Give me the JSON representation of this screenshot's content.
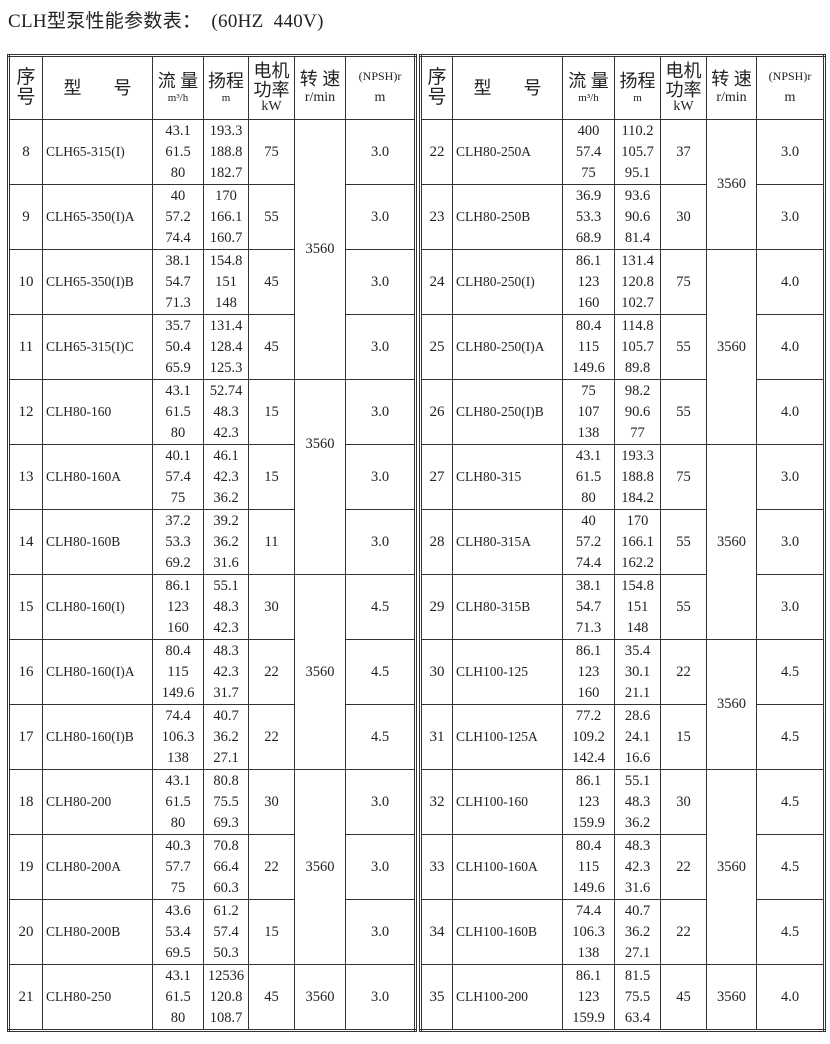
{
  "title": "CLH型泵性能参数表：  (60HZ  440V)",
  "headers": {
    "seq": [
      "序",
      "号"
    ],
    "model": [
      "型",
      "号"
    ],
    "flow": "流 量",
    "flow_unit": "m³/h",
    "head": "扬程",
    "head_unit": "m",
    "power": [
      "电机",
      "功率"
    ],
    "power_unit": "kW",
    "speed": "转 速",
    "speed_unit": "r/min",
    "npsh": "(NPSH)r",
    "npsh_unit": "m"
  },
  "tables": [
    {
      "rows": [
        {
          "no": "8",
          "model": "CLH65-315(I)",
          "flow": [
            "43.1",
            "61.5",
            "80"
          ],
          "head": [
            "193.3",
            "188.8",
            "182.7"
          ],
          "power": "75",
          "npsh": "3.0"
        },
        {
          "no": "9",
          "model": "CLH65-350(I)A",
          "flow": [
            "40",
            "57.2",
            "74.4"
          ],
          "head": [
            "170",
            "166.1",
            "160.7"
          ],
          "power": "55",
          "npsh": "3.0"
        },
        {
          "no": "10",
          "model": "CLH65-350(I)B",
          "flow": [
            "38.1",
            "54.7",
            "71.3"
          ],
          "head": [
            "154.8",
            "151",
            "148"
          ],
          "power": "45",
          "npsh": "3.0"
        },
        {
          "no": "11",
          "model": "CLH65-315(I)C",
          "flow": [
            "35.7",
            "50.4",
            "65.9"
          ],
          "head": [
            "131.4",
            "128.4",
            "125.3"
          ],
          "power": "45",
          "npsh": "3.0"
        },
        {
          "no": "12",
          "model": "CLH80-160",
          "flow": [
            "43.1",
            "61.5",
            "80"
          ],
          "head": [
            "52.74",
            "48.3",
            "42.3"
          ],
          "power": "15",
          "npsh": "3.0"
        },
        {
          "no": "13",
          "model": "CLH80-160A",
          "flow": [
            "40.1",
            "57.4",
            "75"
          ],
          "head": [
            "46.1",
            "42.3",
            "36.2"
          ],
          "power": "15",
          "npsh": "3.0"
        },
        {
          "no": "14",
          "model": "CLH80-160B",
          "flow": [
            "37.2",
            "53.3",
            "69.2"
          ],
          "head": [
            "39.2",
            "36.2",
            "31.6"
          ],
          "power": "11",
          "npsh": "3.0"
        },
        {
          "no": "15",
          "model": "CLH80-160(I)",
          "flow": [
            "86.1",
            "123",
            "160"
          ],
          "head": [
            "55.1",
            "48.3",
            "42.3"
          ],
          "power": "30",
          "npsh": "4.5"
        },
        {
          "no": "16",
          "model": "CLH80-160(I)A",
          "flow": [
            "80.4",
            "115",
            "149.6"
          ],
          "head": [
            "48.3",
            "42.3",
            "31.7"
          ],
          "power": "22",
          "npsh": "4.5"
        },
        {
          "no": "17",
          "model": "CLH80-160(I)B",
          "flow": [
            "74.4",
            "106.3",
            "138"
          ],
          "head": [
            "40.7",
            "36.2",
            "27.1"
          ],
          "power": "22",
          "npsh": "4.5"
        },
        {
          "no": "18",
          "model": "CLH80-200",
          "flow": [
            "43.1",
            "61.5",
            "80"
          ],
          "head": [
            "80.8",
            "75.5",
            "69.3"
          ],
          "power": "30",
          "npsh": "3.0"
        },
        {
          "no": "19",
          "model": "CLH80-200A",
          "flow": [
            "40.3",
            "57.7",
            "75"
          ],
          "head": [
            "70.8",
            "66.4",
            "60.3"
          ],
          "power": "22",
          "npsh": "3.0"
        },
        {
          "no": "20",
          "model": "CLH80-200B",
          "flow": [
            "43.6",
            "53.4",
            "69.5"
          ],
          "head": [
            "61.2",
            "57.4",
            "50.3"
          ],
          "power": "15",
          "npsh": "3.0"
        },
        {
          "no": "21",
          "model": "CLH80-250",
          "flow": [
            "43.1",
            "61.5",
            "80"
          ],
          "head": [
            "12536",
            "120.8",
            "108.7"
          ],
          "power": "45",
          "npsh": "3.0"
        }
      ],
      "speed_groups": [
        {
          "rows": 4,
          "speed": "3560"
        },
        {
          "rows": 3,
          "speed": "3560"
        },
        {
          "rows": 3,
          "speed": "3560"
        },
        {
          "rows": 3,
          "speed": "3560"
        },
        {
          "rows": 1,
          "speed": "3560"
        }
      ]
    },
    {
      "rows": [
        {
          "no": "22",
          "model": "CLH80-250A",
          "flow": [
            "400",
            "57.4",
            "75"
          ],
          "head": [
            "110.2",
            "105.7",
            "95.1"
          ],
          "power": "37",
          "npsh": "3.0"
        },
        {
          "no": "23",
          "model": "CLH80-250B",
          "flow": [
            "36.9",
            "53.3",
            "68.9"
          ],
          "head": [
            "93.6",
            "90.6",
            "81.4"
          ],
          "power": "30",
          "npsh": "3.0"
        },
        {
          "no": "24",
          "model": "CLH80-250(I)",
          "flow": [
            "86.1",
            "123",
            "160"
          ],
          "head": [
            "131.4",
            "120.8",
            "102.7"
          ],
          "power": "75",
          "npsh": "4.0"
        },
        {
          "no": "25",
          "model": "CLH80-250(I)A",
          "flow": [
            "80.4",
            "115",
            "149.6"
          ],
          "head": [
            "114.8",
            "105.7",
            "89.8"
          ],
          "power": "55",
          "npsh": "4.0"
        },
        {
          "no": "26",
          "model": "CLH80-250(I)B",
          "flow": [
            "75",
            "107",
            "138"
          ],
          "head": [
            "98.2",
            "90.6",
            "77"
          ],
          "power": "55",
          "npsh": "4.0"
        },
        {
          "no": "27",
          "model": "CLH80-315",
          "flow": [
            "43.1",
            "61.5",
            "80"
          ],
          "head": [
            "193.3",
            "188.8",
            "184.2"
          ],
          "power": "75",
          "npsh": "3.0"
        },
        {
          "no": "28",
          "model": "CLH80-315A",
          "flow": [
            "40",
            "57.2",
            "74.4"
          ],
          "head": [
            "170",
            "166.1",
            "162.2"
          ],
          "power": "55",
          "npsh": "3.0"
        },
        {
          "no": "29",
          "model": "CLH80-315B",
          "flow": [
            "38.1",
            "54.7",
            "71.3"
          ],
          "head": [
            "154.8",
            "151",
            "148"
          ],
          "power": "55",
          "npsh": "3.0"
        },
        {
          "no": "30",
          "model": "CLH100-125",
          "flow": [
            "86.1",
            "123",
            "160"
          ],
          "head": [
            "35.4",
            "30.1",
            "21.1"
          ],
          "power": "22",
          "npsh": "4.5"
        },
        {
          "no": "31",
          "model": "CLH100-125A",
          "flow": [
            "77.2",
            "109.2",
            "142.4"
          ],
          "head": [
            "28.6",
            "24.1",
            "16.6"
          ],
          "power": "15",
          "npsh": "4.5"
        },
        {
          "no": "32",
          "model": "CLH100-160",
          "flow": [
            "86.1",
            "123",
            "159.9"
          ],
          "head": [
            "55.1",
            "48.3",
            "36.2"
          ],
          "power": "30",
          "npsh": "4.5"
        },
        {
          "no": "33",
          "model": "CLH100-160A",
          "flow": [
            "80.4",
            "115",
            "149.6"
          ],
          "head": [
            "48.3",
            "42.3",
            "31.6"
          ],
          "power": "22",
          "npsh": "4.5"
        },
        {
          "no": "34",
          "model": "CLH100-160B",
          "flow": [
            "74.4",
            "106.3",
            "138"
          ],
          "head": [
            "40.7",
            "36.2",
            "27.1"
          ],
          "power": "22",
          "npsh": "4.5"
        },
        {
          "no": "35",
          "model": "CLH100-200",
          "flow": [
            "86.1",
            "123",
            "159.9"
          ],
          "head": [
            "81.5",
            "75.5",
            "63.4"
          ],
          "power": "45",
          "npsh": "4.0"
        }
      ],
      "speed_groups": [
        {
          "rows": 2,
          "speed": "3560"
        },
        {
          "rows": 3,
          "speed": "3560"
        },
        {
          "rows": 3,
          "speed": "3560"
        },
        {
          "rows": 2,
          "speed": "3560"
        },
        {
          "rows": 3,
          "speed": "3560"
        },
        {
          "rows": 1,
          "speed": "3560"
        }
      ]
    }
  ]
}
